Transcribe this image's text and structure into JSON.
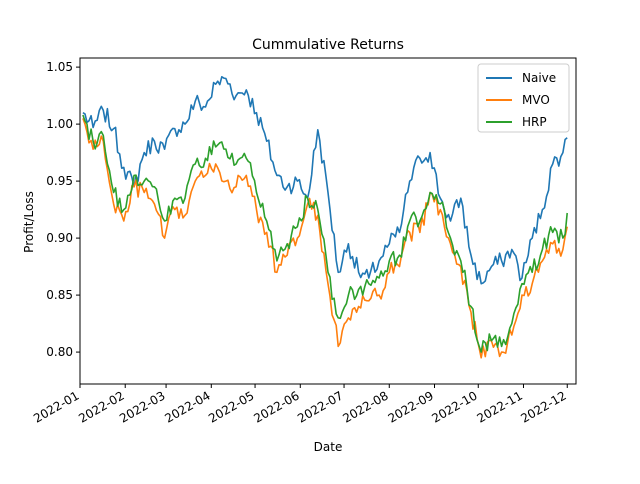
{
  "chart_data": {
    "type": "line",
    "title": "Cummulative Returns",
    "xlabel": "Date",
    "ylabel": "Profit/Loss",
    "x_start": "2022-01-01",
    "x_end": "2022-12-01",
    "xlim": [
      "2022-01-01",
      "2022-12-07"
    ],
    "ylim": [
      0.772,
      1.058
    ],
    "x_ticks": [
      "2022-01-01",
      "2022-02-01",
      "2022-03-01",
      "2022-04-01",
      "2022-05-01",
      "2022-06-01",
      "2022-07-01",
      "2022-08-01",
      "2022-09-01",
      "2022-10-01",
      "2022-11-01",
      "2022-12-01"
    ],
    "x_tick_labels": [
      "2022-01",
      "2022-02",
      "2022-03",
      "2022-04",
      "2022-05",
      "2022-06",
      "2022-07",
      "2022-08",
      "2022-09",
      "2022-10",
      "2022-11",
      "2022-12"
    ],
    "y_ticks": [
      0.8,
      0.85,
      0.9,
      0.95,
      1.0,
      1.05
    ],
    "y_tick_labels": [
      "0.80",
      "0.85",
      "0.90",
      "0.95",
      "1.00",
      "1.05"
    ],
    "grid": false,
    "legend_position": "top-right",
    "series": [
      {
        "name": "Naive",
        "color": "#1f77b4",
        "x": [
          "2022-01-03",
          "2022-01-10",
          "2022-01-17",
          "2022-01-24",
          "2022-01-31",
          "2022-02-07",
          "2022-02-14",
          "2022-02-21",
          "2022-02-28",
          "2022-03-07",
          "2022-03-14",
          "2022-03-21",
          "2022-03-28",
          "2022-04-04",
          "2022-04-11",
          "2022-04-18",
          "2022-04-25",
          "2022-05-02",
          "2022-05-09",
          "2022-05-16",
          "2022-05-23",
          "2022-05-30",
          "2022-06-06",
          "2022-06-13",
          "2022-06-20",
          "2022-06-27",
          "2022-07-04",
          "2022-07-11",
          "2022-07-18",
          "2022-07-25",
          "2022-08-01",
          "2022-08-08",
          "2022-08-15",
          "2022-08-22",
          "2022-08-29",
          "2022-09-05",
          "2022-09-12",
          "2022-09-19",
          "2022-09-26",
          "2022-10-03",
          "2022-10-10",
          "2022-10-17",
          "2022-10-24",
          "2022-10-31",
          "2022-11-07",
          "2022-11-14",
          "2022-11-21",
          "2022-11-28",
          "2022-12-01"
        ],
        "values": [
          1.01,
          0.997,
          1.012,
          0.996,
          0.962,
          0.945,
          0.975,
          0.985,
          0.978,
          0.996,
          1.0,
          1.02,
          1.015,
          1.035,
          1.04,
          1.025,
          1.03,
          1.01,
          0.985,
          0.955,
          0.945,
          0.95,
          0.935,
          0.995,
          0.94,
          0.87,
          0.895,
          0.87,
          0.865,
          0.88,
          0.895,
          0.905,
          0.95,
          0.97,
          0.975,
          0.935,
          0.915,
          0.935,
          0.885,
          0.86,
          0.875,
          0.88,
          0.89,
          0.865,
          0.9,
          0.925,
          0.965,
          0.975,
          0.988
        ]
      },
      {
        "name": "MVO",
        "color": "#ff7f0e",
        "x": [
          "2022-01-03",
          "2022-01-10",
          "2022-01-17",
          "2022-01-24",
          "2022-01-31",
          "2022-02-07",
          "2022-02-14",
          "2022-02-21",
          "2022-02-28",
          "2022-03-07",
          "2022-03-14",
          "2022-03-21",
          "2022-03-28",
          "2022-04-04",
          "2022-04-11",
          "2022-04-18",
          "2022-04-25",
          "2022-05-02",
          "2022-05-09",
          "2022-05-16",
          "2022-05-23",
          "2022-05-30",
          "2022-06-06",
          "2022-06-13",
          "2022-06-20",
          "2022-06-27",
          "2022-07-04",
          "2022-07-11",
          "2022-07-18",
          "2022-07-25",
          "2022-08-01",
          "2022-08-08",
          "2022-08-15",
          "2022-08-22",
          "2022-08-29",
          "2022-09-05",
          "2022-09-12",
          "2022-09-19",
          "2022-09-26",
          "2022-10-03",
          "2022-10-10",
          "2022-10-17",
          "2022-10-24",
          "2022-10-31",
          "2022-11-07",
          "2022-11-14",
          "2022-11-21",
          "2022-11-28",
          "2022-12-01"
        ],
        "values": [
          1.005,
          0.978,
          0.985,
          0.93,
          0.915,
          0.945,
          0.94,
          0.93,
          0.9,
          0.925,
          0.92,
          0.95,
          0.955,
          0.965,
          0.95,
          0.945,
          0.955,
          0.925,
          0.905,
          0.87,
          0.885,
          0.9,
          0.93,
          0.92,
          0.86,
          0.805,
          0.83,
          0.84,
          0.845,
          0.85,
          0.87,
          0.875,
          0.905,
          0.905,
          0.94,
          0.925,
          0.895,
          0.875,
          0.835,
          0.795,
          0.81,
          0.8,
          0.815,
          0.85,
          0.86,
          0.88,
          0.895,
          0.89,
          0.91
        ]
      },
      {
        "name": "HRP",
        "color": "#2ca02c",
        "x": [
          "2022-01-03",
          "2022-01-10",
          "2022-01-17",
          "2022-01-24",
          "2022-01-31",
          "2022-02-07",
          "2022-02-14",
          "2022-02-21",
          "2022-02-28",
          "2022-03-07",
          "2022-03-14",
          "2022-03-21",
          "2022-03-28",
          "2022-04-04",
          "2022-04-11",
          "2022-04-18",
          "2022-04-25",
          "2022-05-02",
          "2022-05-09",
          "2022-05-16",
          "2022-05-23",
          "2022-05-30",
          "2022-06-06",
          "2022-06-13",
          "2022-06-20",
          "2022-06-27",
          "2022-07-04",
          "2022-07-11",
          "2022-07-18",
          "2022-07-25",
          "2022-08-01",
          "2022-08-08",
          "2022-08-15",
          "2022-08-22",
          "2022-08-29",
          "2022-09-05",
          "2022-09-12",
          "2022-09-19",
          "2022-09-26",
          "2022-10-03",
          "2022-10-10",
          "2022-10-17",
          "2022-10-24",
          "2022-10-31",
          "2022-11-07",
          "2022-11-14",
          "2022-11-21",
          "2022-11-28",
          "2022-12-01"
        ],
        "values": [
          1.008,
          0.985,
          0.99,
          0.94,
          0.925,
          0.955,
          0.95,
          0.945,
          0.915,
          0.935,
          0.935,
          0.965,
          0.97,
          0.98,
          0.978,
          0.965,
          0.97,
          0.94,
          0.915,
          0.88,
          0.895,
          0.91,
          0.935,
          0.925,
          0.87,
          0.83,
          0.85,
          0.855,
          0.86,
          0.865,
          0.88,
          0.885,
          0.915,
          0.915,
          0.94,
          0.93,
          0.9,
          0.88,
          0.84,
          0.8,
          0.81,
          0.805,
          0.825,
          0.86,
          0.87,
          0.89,
          0.905,
          0.9,
          0.922
        ]
      }
    ]
  }
}
